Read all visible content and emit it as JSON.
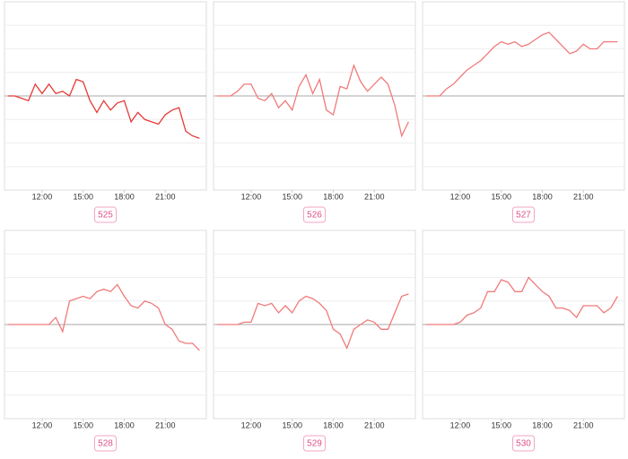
{
  "chart_data": [
    {
      "type": "line",
      "label": "525",
      "color": "#e53935",
      "x": [
        9.5,
        10,
        10.5,
        11,
        11.5,
        12,
        12.5,
        13,
        13.5,
        14,
        14.5,
        15,
        15.5,
        16,
        16.5,
        17,
        17.5,
        18,
        18.5,
        19,
        19.5,
        20,
        20.5,
        21,
        21.5,
        22,
        22.5,
        23,
        23.5
      ],
      "values": [
        0,
        0,
        -0.1,
        -0.2,
        0.5,
        0.1,
        0.5,
        0.1,
        0.2,
        0,
        0.7,
        0.6,
        -0.2,
        -0.7,
        -0.2,
        -0.6,
        -0.3,
        -0.2,
        -1.1,
        -0.7,
        -1.0,
        -1.1,
        -1.2,
        -0.8,
        -0.6,
        -0.5,
        -1.5,
        -1.7,
        -1.8
      ],
      "xlim": [
        9.25,
        24
      ],
      "xticks": [
        {
          "value": 12,
          "label": "12:00"
        },
        {
          "value": 15,
          "label": "15:00"
        },
        {
          "value": 18,
          "label": "18:00"
        },
        {
          "value": 21,
          "label": "21:00"
        }
      ],
      "ylim": [
        -4,
        4
      ],
      "yticks": [
        -3,
        -2,
        -1,
        0,
        1,
        2,
        3
      ],
      "grid": true
    },
    {
      "type": "line",
      "label": "526",
      "color": "#f07a7a",
      "x": [
        9.5,
        10,
        10.5,
        11,
        11.5,
        12,
        12.5,
        13,
        13.5,
        14,
        14.5,
        15,
        15.5,
        16,
        16.5,
        17,
        17.5,
        18,
        18.5,
        19,
        19.5,
        20,
        20.5,
        21,
        21.5,
        22,
        22.5,
        23,
        23.5
      ],
      "values": [
        0,
        0,
        0,
        0.2,
        0.5,
        0.5,
        -0.1,
        -0.2,
        0.1,
        -0.5,
        -0.2,
        -0.6,
        0.4,
        0.9,
        0.1,
        0.7,
        -0.6,
        -0.8,
        0.4,
        0.3,
        1.3,
        0.6,
        0.2,
        0.5,
        0.8,
        0.5,
        -0.4,
        -1.7,
        -1.1
      ],
      "xlim": [
        9.25,
        24
      ],
      "xticks": [
        {
          "value": 12,
          "label": "12:00"
        },
        {
          "value": 15,
          "label": "15:00"
        },
        {
          "value": 18,
          "label": "18:00"
        },
        {
          "value": 21,
          "label": "21:00"
        }
      ],
      "ylim": [
        -4,
        4
      ],
      "yticks": [
        -3,
        -2,
        -1,
        0,
        1,
        2,
        3
      ],
      "grid": true
    },
    {
      "type": "line",
      "label": "527",
      "color": "#f07a7a",
      "x": [
        9.5,
        10,
        10.5,
        11,
        11.5,
        12,
        12.5,
        13,
        13.5,
        14,
        14.5,
        15,
        15.5,
        16,
        16.5,
        17,
        17.5,
        18,
        18.5,
        19,
        19.5,
        20,
        20.5,
        21,
        21.5,
        22,
        22.5,
        23,
        23.5
      ],
      "values": [
        0,
        0,
        0,
        0.3,
        0.5,
        0.8,
        1.1,
        1.3,
        1.5,
        1.8,
        2.1,
        2.3,
        2.2,
        2.3,
        2.1,
        2.2,
        2.4,
        2.6,
        2.7,
        2.4,
        2.1,
        1.8,
        1.9,
        2.2,
        2.0,
        2.0,
        2.3,
        2.3,
        2.3
      ],
      "xlim": [
        9.25,
        24
      ],
      "xticks": [
        {
          "value": 12,
          "label": "12:00"
        },
        {
          "value": 15,
          "label": "15:00"
        },
        {
          "value": 18,
          "label": "18:00"
        },
        {
          "value": 21,
          "label": "21:00"
        }
      ],
      "ylim": [
        -4,
        4
      ],
      "yticks": [
        -3,
        -2,
        -1,
        0,
        1,
        2,
        3
      ],
      "grid": true
    },
    {
      "type": "line",
      "label": "528",
      "color": "#f07a7a",
      "x": [
        9.5,
        10,
        10.5,
        11,
        11.5,
        12,
        12.5,
        13,
        13.5,
        14,
        14.5,
        15,
        15.5,
        16,
        16.5,
        17,
        17.5,
        18,
        18.5,
        19,
        19.5,
        20,
        20.5,
        21,
        21.5,
        22,
        22.5,
        23,
        23.5
      ],
      "values": [
        0,
        0,
        0,
        0,
        0,
        0,
        0,
        0.3,
        -0.3,
        1.0,
        1.1,
        1.2,
        1.1,
        1.4,
        1.5,
        1.4,
        1.7,
        1.2,
        0.8,
        0.7,
        1.0,
        0.9,
        0.7,
        0,
        -0.2,
        -0.7,
        -0.8,
        -0.8,
        -1.1
      ],
      "xlim": [
        9.25,
        24
      ],
      "xticks": [
        {
          "value": 12,
          "label": "12:00"
        },
        {
          "value": 15,
          "label": "15:00"
        },
        {
          "value": 18,
          "label": "18:00"
        },
        {
          "value": 21,
          "label": "21:00"
        }
      ],
      "ylim": [
        -4,
        4
      ],
      "yticks": [
        -3,
        -2,
        -1,
        0,
        1,
        2,
        3
      ],
      "grid": true
    },
    {
      "type": "line",
      "label": "529",
      "color": "#f07a7a",
      "x": [
        9.5,
        10,
        10.5,
        11,
        11.5,
        12,
        12.5,
        13,
        13.5,
        14,
        14.5,
        15,
        15.5,
        16,
        16.5,
        17,
        17.5,
        18,
        18.5,
        19,
        19.5,
        20,
        20.5,
        21,
        21.5,
        22,
        22.5,
        23,
        23.5
      ],
      "values": [
        0,
        0,
        0,
        0,
        0.1,
        0.1,
        0.9,
        0.8,
        0.9,
        0.5,
        0.8,
        0.5,
        1.0,
        1.2,
        1.1,
        0.9,
        0.6,
        -0.2,
        -0.4,
        -1.0,
        -0.2,
        0,
        0.2,
        0.1,
        -0.2,
        -0.2,
        0.5,
        1.2,
        1.3
      ],
      "xlim": [
        9.25,
        24
      ],
      "xticks": [
        {
          "value": 12,
          "label": "12:00"
        },
        {
          "value": 15,
          "label": "15:00"
        },
        {
          "value": 18,
          "label": "18:00"
        },
        {
          "value": 21,
          "label": "21:00"
        }
      ],
      "ylim": [
        -4,
        4
      ],
      "yticks": [
        -3,
        -2,
        -1,
        0,
        1,
        2,
        3
      ],
      "grid": true
    },
    {
      "type": "line",
      "label": "530",
      "color": "#f07a7a",
      "x": [
        9.5,
        10,
        10.5,
        11,
        11.5,
        12,
        12.5,
        13,
        13.5,
        14,
        14.5,
        15,
        15.5,
        16,
        16.5,
        17,
        17.5,
        18,
        18.5,
        19,
        19.5,
        20,
        20.5,
        21,
        21.5,
        22,
        22.5,
        23,
        23.5
      ],
      "values": [
        0,
        0,
        0,
        0,
        0,
        0.1,
        0.4,
        0.5,
        0.7,
        1.4,
        1.4,
        1.9,
        1.8,
        1.4,
        1.4,
        2.0,
        1.7,
        1.4,
        1.2,
        0.7,
        0.7,
        0.6,
        0.3,
        0.8,
        0.8,
        0.8,
        0.5,
        0.7,
        1.2
      ],
      "xlim": [
        9.25,
        24
      ],
      "xticks": [
        {
          "value": 12,
          "label": "12:00"
        },
        {
          "value": 15,
          "label": "15:00"
        },
        {
          "value": 18,
          "label": "18:00"
        },
        {
          "value": 21,
          "label": "21:00"
        }
      ],
      "ylim": [
        -4,
        4
      ],
      "yticks": [
        -3,
        -2,
        -1,
        0,
        1,
        2,
        3
      ],
      "grid": true
    }
  ]
}
